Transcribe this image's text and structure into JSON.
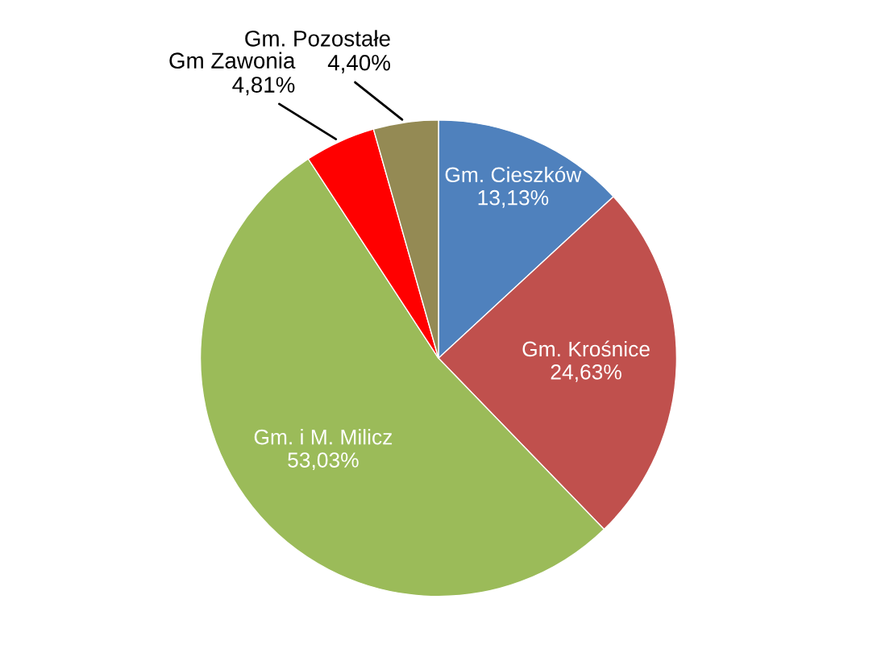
{
  "chart_data": {
    "type": "pie",
    "categories": [
      "Gm. Cieszków",
      "Gm. Krośnice",
      "Gm. i M. Milicz",
      "Gm Zawonia",
      "Gm. Pozostałe"
    ],
    "values": [
      13.13,
      24.63,
      53.03,
      4.81,
      4.4
    ],
    "colors": [
      "#4f81bd",
      "#c0504d",
      "#9bbb59",
      "#ff0000",
      "#948a54"
    ],
    "value_labels": [
      "13,13%",
      "24,63%",
      "53,03%",
      "4,81%",
      "4,40%"
    ],
    "legend": false
  }
}
